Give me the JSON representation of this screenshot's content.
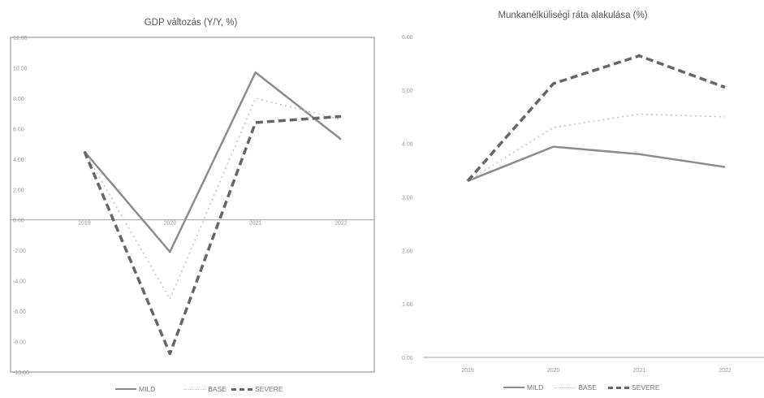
{
  "colors": {
    "mild": "#8c8c8c",
    "base": "#c4c4c4",
    "severe": "#666666",
    "axis": "#888888",
    "tick": "#9a9a9a",
    "frame": "#8a8a8a"
  },
  "legend_labels": {
    "mild": "MILD",
    "base": "BASE",
    "severe": "SEVERE"
  },
  "chart_data": [
    {
      "type": "line",
      "title": "GDP változás (Y/Y, %)",
      "xlabel": "",
      "ylabel": "",
      "categories": [
        "2019",
        "2020",
        "2021",
        "2022"
      ],
      "ylim": [
        -10,
        12
      ],
      "yticks": [
        "12.00",
        "10.00",
        "8.00",
        "6.00",
        "4.00",
        "2.00",
        "0.00",
        "-2.00",
        "-4.00",
        "-6.00",
        "-8.00",
        "-10.00"
      ],
      "grid": false,
      "legend_position": "bottom",
      "series": [
        {
          "name": "MILD",
          "key": "mild",
          "values": [
            4.5,
            -2.1,
            9.7,
            5.3
          ]
        },
        {
          "name": "BASE",
          "key": "base",
          "values": [
            4.5,
            -5.2,
            8.0,
            6.6
          ]
        },
        {
          "name": "SEVERE",
          "key": "severe",
          "values": [
            4.5,
            -8.8,
            6.4,
            6.8
          ]
        }
      ]
    },
    {
      "type": "line",
      "title": "Munkanélküliségi ráta alakulása (%)",
      "xlabel": "",
      "ylabel": "",
      "categories": [
        "2019",
        "2020",
        "2021",
        "2022"
      ],
      "ylim": [
        0,
        6
      ],
      "yticks": [
        "6.00",
        "5.00",
        "4.00",
        "3.00",
        "2.00",
        "1.00",
        "0.00"
      ],
      "grid": false,
      "legend_position": "bottom",
      "series": [
        {
          "name": "MILD",
          "key": "mild",
          "values": [
            3.3,
            3.94,
            3.8,
            3.56
          ]
        },
        {
          "name": "BASE",
          "key": "base",
          "values": [
            3.3,
            4.3,
            4.55,
            4.5
          ]
        },
        {
          "name": "SEVERE",
          "key": "severe",
          "values": [
            3.3,
            5.12,
            5.64,
            5.05
          ]
        }
      ]
    }
  ]
}
